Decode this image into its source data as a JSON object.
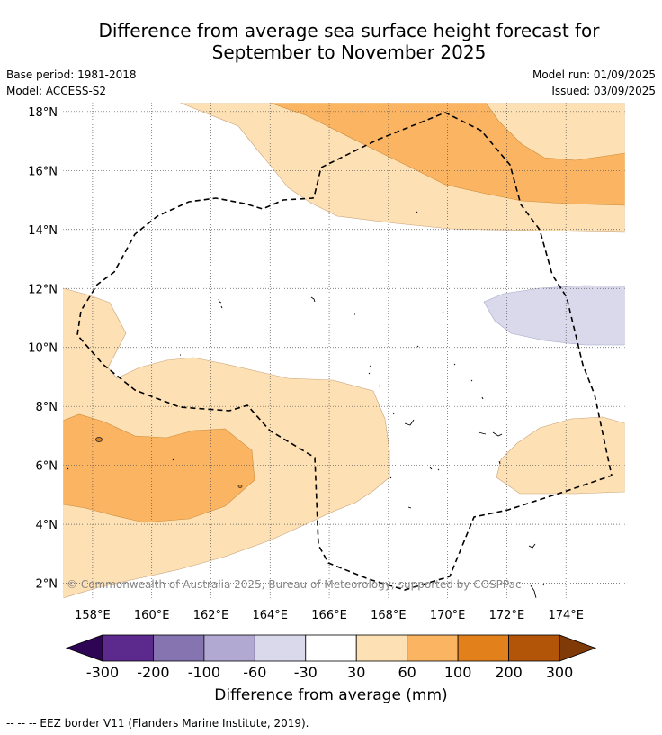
{
  "title_line1": "Difference from average sea surface height forecast for",
  "title_line2": "September to November 2025",
  "meta": {
    "base_period": "Base period: 1981-2018",
    "model": "Model: ACCESS-S2",
    "model_run": "Model run: 01/09/2025",
    "issued": "Issued: 03/09/2025"
  },
  "map": {
    "lon_range": [
      157,
      176
    ],
    "lat_range": [
      1.5,
      18.3
    ],
    "x_ticks": [
      "158°E",
      "160°E",
      "162°E",
      "164°E",
      "166°E",
      "168°E",
      "170°E",
      "172°E",
      "174°E"
    ],
    "y_ticks": [
      "2°N",
      "4°N",
      "6°N",
      "8°N",
      "10°N",
      "12°N",
      "14°N",
      "16°N",
      "18°N"
    ],
    "copyright": "© Commonwealth of Australia 2025, Bureau of Meteorology; supported by COSPPac"
  },
  "colorbar": {
    "labels": [
      "-300",
      "-200",
      "-100",
      "-60",
      "-30",
      "30",
      "60",
      "100",
      "200",
      "300"
    ],
    "colors": [
      "#2e0554",
      "#5b2a8c",
      "#8674b0",
      "#b1a9d2",
      "#d9d9eb",
      "#ffffff",
      "#fde0b4",
      "#fbb562",
      "#e2811b",
      "#b25509",
      "#7f3a08"
    ],
    "title": "Difference from average (mm)"
  },
  "footnote": "--  --  -- EEZ border V11 (Flanders Marine Institute, 2019)."
}
